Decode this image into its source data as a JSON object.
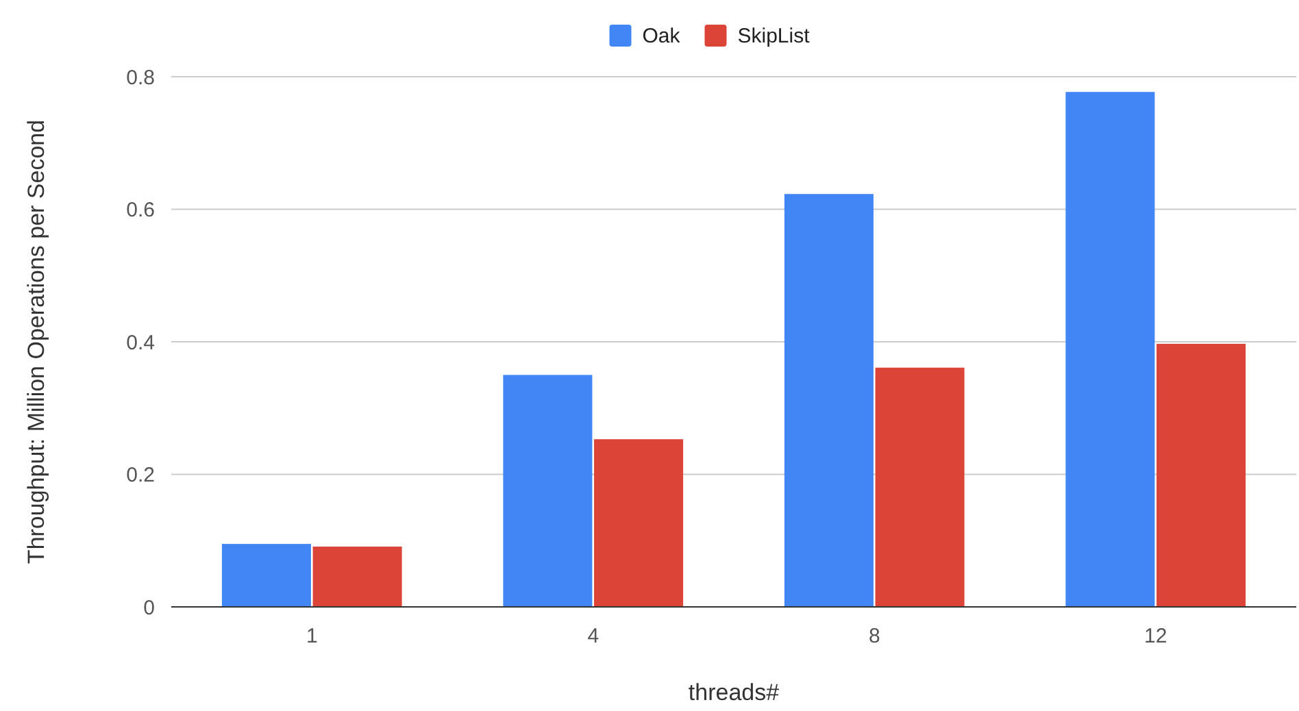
{
  "chart_data": {
    "type": "bar",
    "xlabel": "threads#",
    "ylabel": "Throughput: Million Operations per Second",
    "categories": [
      "1",
      "4",
      "8",
      "12"
    ],
    "series": [
      {
        "name": "Oak",
        "color": "#4285f4",
        "values": [
          0.095,
          0.35,
          0.623,
          0.777
        ]
      },
      {
        "name": "SkipList",
        "color": "#db4437",
        "values": [
          0.091,
          0.253,
          0.361,
          0.397
        ]
      }
    ],
    "ylim": [
      0,
      0.8
    ],
    "yticks": [
      0,
      0.2,
      0.4,
      0.6,
      0.8
    ],
    "grid": "y",
    "legend": "top"
  }
}
